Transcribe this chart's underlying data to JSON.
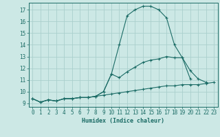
{
  "x": [
    0,
    1,
    2,
    3,
    4,
    5,
    6,
    7,
    8,
    9,
    10,
    11,
    12,
    13,
    14,
    15,
    16,
    17,
    18,
    19,
    20,
    21,
    22,
    23
  ],
  "line1": [
    9.4,
    9.1,
    9.3,
    9.2,
    9.4,
    9.4,
    9.5,
    9.5,
    9.6,
    10.0,
    11.5,
    14.0,
    16.5,
    17.0,
    17.3,
    17.3,
    17.0,
    16.3,
    14.0,
    12.9,
    11.8,
    11.1,
    10.8,
    null
  ],
  "line2": [
    9.4,
    9.1,
    9.3,
    9.2,
    9.4,
    9.4,
    9.5,
    9.5,
    9.6,
    10.0,
    11.5,
    11.2,
    11.7,
    12.1,
    12.5,
    12.7,
    12.8,
    13.0,
    12.9,
    12.9,
    11.1,
    null,
    null,
    null
  ],
  "line3": [
    9.4,
    9.1,
    9.3,
    9.2,
    9.4,
    9.4,
    9.5,
    9.5,
    9.6,
    9.7,
    9.8,
    9.9,
    10.0,
    10.1,
    10.2,
    10.3,
    10.4,
    10.5,
    10.5,
    10.6,
    10.6,
    10.6,
    10.7,
    10.8
  ],
  "bg_color": "#cce8e5",
  "grid_color": "#aacfcc",
  "line_color": "#1a6b65",
  "xlabel": "Humidex (Indice chaleur)",
  "ylim": [
    8.7,
    17.6
  ],
  "xlim": [
    -0.5,
    23.5
  ],
  "yticks": [
    9,
    10,
    11,
    12,
    13,
    14,
    15,
    16,
    17
  ],
  "xticks": [
    0,
    1,
    2,
    3,
    4,
    5,
    6,
    7,
    8,
    9,
    10,
    11,
    12,
    13,
    14,
    15,
    16,
    17,
    18,
    19,
    20,
    21,
    22,
    23
  ],
  "tick_fontsize": 5.5,
  "xlabel_fontsize": 6.0,
  "linewidth": 0.8,
  "markersize": 3.5
}
